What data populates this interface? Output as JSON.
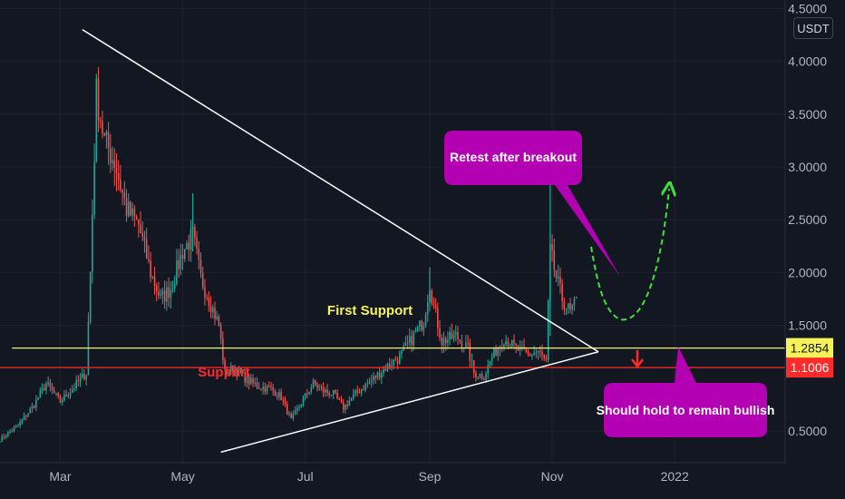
{
  "colors": {
    "background": "#131722",
    "grid": "#1e2230",
    "axis_text": "#b2b5be",
    "up": "#26a69a",
    "down": "#ef5350",
    "first_support": "#f5f25a",
    "support": "#ff2b2b",
    "callout": "#b200b2",
    "projection": "#3de23d",
    "trendline": "#ffffff"
  },
  "toolbar": {
    "unit": "USDT"
  },
  "chart_data": {
    "type": "candlestick",
    "xlabel": "",
    "ylabel": "",
    "x_ticks": [
      "Mar",
      "May",
      "Jul",
      "Sep",
      "Nov",
      "2022"
    ],
    "y_ticks": [
      "4.5000",
      "4.0000",
      "3.5000",
      "3.0000",
      "2.5000",
      "2.0000",
      "1.5000",
      "0.5000"
    ],
    "ylim": [
      0.2,
      4.58
    ],
    "x_range": [
      "2021-01-30",
      "2022-02-25"
    ],
    "grid": true,
    "price_markers": [
      {
        "label": "1.2854",
        "value": 1.2854,
        "color": "#f5f25a",
        "text_color": "#131722"
      },
      {
        "label": "1.1006",
        "value": 1.1006,
        "color": "#ff2b2b",
        "text_color": "#ffffff"
      }
    ],
    "horizontal_levels": [
      {
        "name": "First Support",
        "value": 1.2854,
        "color": "#f5f25a",
        "from": "2021-02-05",
        "to": "2022-02-25"
      },
      {
        "name": "Support",
        "value": 1.1006,
        "color": "#ff2b2b",
        "from": "2021-01-30",
        "to": "2022-02-25"
      }
    ],
    "trendlines": [
      {
        "from": [
          "2021-03-12",
          4.3
        ],
        "to": [
          "2021-11-24",
          1.25
        ]
      },
      {
        "from": [
          "2021-05-20",
          0.3
        ],
        "to": [
          "2021-11-24",
          1.25
        ]
      }
    ],
    "annotations": {
      "first_support": "First Support",
      "support": "Support",
      "retest": "Retest after breakout",
      "hold": "Should hold to remain bullish"
    },
    "ohlc_keypoints": [
      [
        "2021-01-30",
        0.42
      ],
      [
        "2021-02-08",
        0.55
      ],
      [
        "2021-02-16",
        0.75
      ],
      [
        "2021-02-22",
        0.95
      ],
      [
        "2021-03-01",
        0.78
      ],
      [
        "2021-03-08",
        0.92
      ],
      [
        "2021-03-14",
        1.05
      ],
      [
        "2021-03-16",
        2.0
      ],
      [
        "2021-03-19",
        3.7
      ],
      [
        "2021-03-23",
        3.25
      ],
      [
        "2021-03-28",
        3.05
      ],
      [
        "2021-04-03",
        2.6
      ],
      [
        "2021-04-09",
        2.45
      ],
      [
        "2021-04-15",
        2.0
      ],
      [
        "2021-04-20",
        1.75
      ],
      [
        "2021-04-25",
        1.85
      ],
      [
        "2021-05-01",
        2.2
      ],
      [
        "2021-05-06",
        2.35
      ],
      [
        "2021-05-10",
        1.95
      ],
      [
        "2021-05-14",
        1.75
      ],
      [
        "2021-05-19",
        1.5
      ],
      [
        "2021-05-22",
        1.05
      ],
      [
        "2021-05-27",
        1.1
      ],
      [
        "2021-06-02",
        0.98
      ],
      [
        "2021-06-08",
        0.92
      ],
      [
        "2021-06-14",
        0.9
      ],
      [
        "2021-06-19",
        0.82
      ],
      [
        "2021-06-24",
        0.6
      ],
      [
        "2021-06-30",
        0.8
      ],
      [
        "2021-07-05",
        0.95
      ],
      [
        "2021-07-10",
        0.88
      ],
      [
        "2021-07-15",
        0.85
      ],
      [
        "2021-07-20",
        0.72
      ],
      [
        "2021-07-26",
        0.85
      ],
      [
        "2021-08-03",
        0.98
      ],
      [
        "2021-08-10",
        1.1
      ],
      [
        "2021-08-17",
        1.2
      ],
      [
        "2021-08-24",
        1.4
      ],
      [
        "2021-08-29",
        1.55
      ],
      [
        "2021-09-01",
        1.9
      ],
      [
        "2021-09-03",
        1.68
      ],
      [
        "2021-09-07",
        1.35
      ],
      [
        "2021-09-14",
        1.4
      ],
      [
        "2021-09-20",
        1.28
      ],
      [
        "2021-09-23",
        1.05
      ],
      [
        "2021-09-28",
        1.02
      ],
      [
        "2021-10-02",
        1.2
      ],
      [
        "2021-10-08",
        1.38
      ],
      [
        "2021-10-14",
        1.28
      ],
      [
        "2021-10-20",
        1.22
      ],
      [
        "2021-10-25",
        1.25
      ],
      [
        "2021-10-29",
        1.15
      ],
      [
        "2021-10-31",
        2.2
      ],
      [
        "2021-11-03",
        1.95
      ],
      [
        "2021-11-06",
        1.75
      ],
      [
        "2021-11-10",
        1.62
      ],
      [
        "2021-11-13",
        1.72
      ]
    ]
  }
}
